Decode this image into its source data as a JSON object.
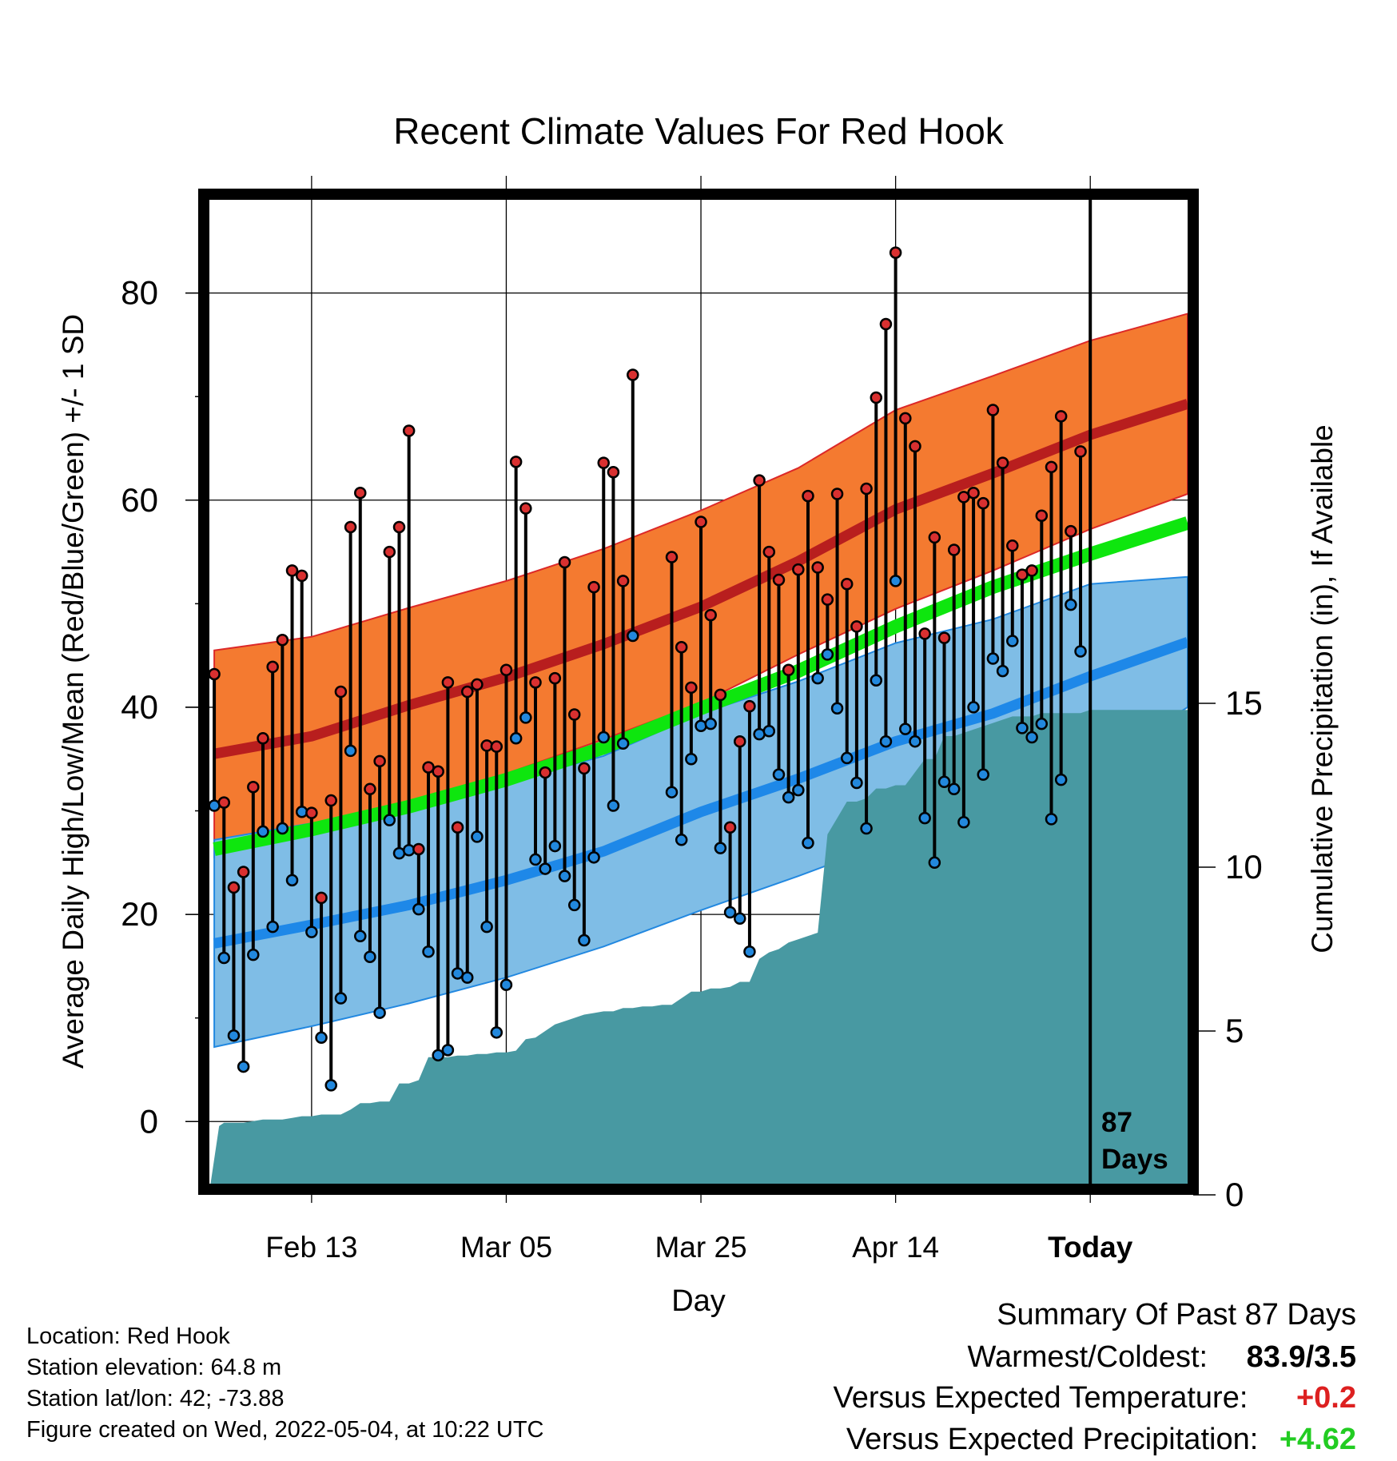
{
  "chart_data": {
    "type": "line",
    "title": "Recent Climate Values For Red Hook",
    "xlabel": "Day",
    "ylabel": "Average Daily High/Low/Mean (Red/Blue/Green) +/- 1 SD",
    "y2label": "Cumulative Precipitation (in), If Available",
    "ylim": [
      -6,
      89
    ],
    "y_ticks": [
      "0",
      "20",
      "40",
      "60",
      "80"
    ],
    "y2lim": [
      0,
      30
    ],
    "y2_ticks": [
      "0",
      "5",
      "10",
      "15"
    ],
    "x_ticks": [
      "Feb 13",
      "Mar 05",
      "Mar 25",
      "Apr 14",
      "Today"
    ],
    "x_tick_days": [
      10,
      30,
      50,
      70,
      90
    ],
    "xlim": [
      -0.5,
      100
    ],
    "today_label": "87",
    "today_label2": "Days",
    "grid": true,
    "colors": {
      "high_band": "#f47a30",
      "high_mean": "#b81e1e",
      "low_band": "#7fbde6",
      "low_mean": "#1e88e8",
      "mean": "#0ee60e",
      "precip": "#4899a2",
      "high_dot": "#d93030",
      "low_dot": "#2288dd",
      "band_edge_red": "#dc2828",
      "band_edge_blue": "#2288e0"
    },
    "normals": {
      "x": [
        0,
        10,
        20,
        30,
        40,
        50,
        60,
        70,
        80,
        90,
        100
      ],
      "high_mean": [
        35.5,
        37.2,
        40.2,
        42.9,
        46.1,
        49.7,
        54.1,
        59.1,
        62.6,
        66.3,
        69.3
      ],
      "high_sd": [
        10,
        9.6,
        9.4,
        9.3,
        9.2,
        9.3,
        9.0,
        9.6,
        9.4,
        9.1,
        8.7
      ],
      "low_mean": [
        17.2,
        19.0,
        20.9,
        23.3,
        26.1,
        29.9,
        33.1,
        36.7,
        39.4,
        43.0,
        46.3
      ],
      "low_sd": [
        10,
        9.8,
        9.5,
        9.4,
        9.2,
        9.5,
        9.4,
        9.5,
        9.1,
        8.9,
        6.3
      ],
      "mean": [
        26.3,
        28.2,
        30.4,
        33.0,
        36.1,
        39.9,
        43.5,
        47.8,
        51.6,
        54.8,
        57.8
      ]
    },
    "series": [
      {
        "name": "Daily High",
        "x": [
          0,
          1,
          2,
          3,
          4,
          5,
          6,
          7,
          8,
          9,
          10,
          11,
          12,
          13,
          14,
          15,
          16,
          17,
          18,
          19,
          20,
          21,
          22,
          23,
          24,
          25,
          26,
          27,
          28,
          29,
          30,
          31,
          32,
          33,
          34,
          35,
          36,
          37,
          38,
          39,
          40,
          41,
          42,
          43,
          47,
          48,
          49,
          50,
          51,
          52,
          53,
          54,
          55,
          56,
          57,
          58,
          59,
          60,
          61,
          62,
          63,
          64,
          65,
          66,
          67,
          68,
          69,
          70,
          71,
          72,
          73,
          74,
          75,
          76,
          77,
          78,
          79,
          80,
          81,
          82,
          83,
          84,
          85,
          86,
          87,
          88,
          89
        ],
        "values": [
          43.2,
          30.8,
          22.6,
          24.1,
          32.3,
          37.0,
          43.9,
          46.5,
          53.2,
          52.7,
          29.8,
          21.6,
          31.0,
          41.5,
          57.4,
          60.7,
          32.1,
          34.8,
          55.0,
          57.4,
          66.7,
          26.3,
          34.2,
          33.8,
          42.4,
          28.4,
          41.5,
          42.2,
          36.3,
          36.2,
          43.6,
          63.7,
          59.2,
          42.4,
          33.7,
          42.8,
          54.0,
          39.3,
          34.1,
          51.6,
          63.6,
          62.7,
          52.2,
          72.1,
          54.5,
          45.8,
          41.9,
          57.9,
          48.9,
          41.2,
          28.4,
          36.7,
          40.1,
          61.9,
          55.0,
          52.3,
          43.6,
          53.3,
          60.4,
          53.5,
          50.4,
          60.6,
          51.9,
          47.8,
          61.1,
          69.9,
          77.0,
          83.9,
          67.9,
          65.2,
          47.1,
          56.4,
          46.7,
          55.2,
          60.3,
          60.7,
          59.7,
          68.7,
          63.6,
          55.6,
          52.8,
          53.2,
          58.5,
          63.2,
          68.1,
          57.0,
          64.7
        ]
      },
      {
        "name": "Daily Low",
        "x": [
          0,
          1,
          2,
          3,
          4,
          5,
          6,
          7,
          8,
          9,
          10,
          11,
          12,
          13,
          14,
          15,
          16,
          17,
          18,
          19,
          20,
          21,
          22,
          23,
          24,
          25,
          26,
          27,
          28,
          29,
          30,
          31,
          32,
          33,
          34,
          35,
          36,
          37,
          38,
          39,
          40,
          41,
          42,
          43,
          47,
          48,
          49,
          50,
          51,
          52,
          53,
          54,
          55,
          56,
          57,
          58,
          59,
          60,
          61,
          62,
          63,
          64,
          65,
          66,
          67,
          68,
          69,
          70,
          71,
          72,
          73,
          74,
          75,
          76,
          77,
          78,
          79,
          80,
          81,
          82,
          83,
          84,
          85,
          86,
          87,
          88,
          89
        ],
        "values": [
          30.5,
          15.8,
          8.3,
          5.3,
          16.1,
          28.0,
          18.8,
          28.3,
          23.3,
          29.9,
          18.3,
          8.1,
          3.5,
          11.9,
          35.8,
          17.9,
          15.9,
          10.5,
          29.1,
          25.9,
          26.2,
          20.5,
          16.4,
          6.4,
          6.9,
          14.3,
          13.9,
          27.5,
          18.8,
          8.6,
          13.2,
          37.0,
          39.0,
          25.3,
          24.4,
          26.6,
          23.7,
          20.9,
          17.5,
          25.5,
          37.1,
          30.5,
          36.5,
          46.9,
          31.8,
          27.2,
          35.0,
          38.2,
          38.4,
          26.4,
          20.2,
          19.6,
          16.4,
          37.4,
          37.7,
          33.5,
          31.3,
          32.0,
          26.9,
          42.8,
          45.1,
          39.9,
          35.1,
          32.7,
          28.3,
          42.6,
          36.7,
          52.2,
          37.9,
          36.7,
          29.3,
          25.0,
          32.8,
          32.1,
          28.9,
          40.0,
          33.5,
          44.7,
          43.5,
          46.4,
          38.0,
          37.1,
          38.4,
          29.2,
          33.0,
          49.9,
          45.4
        ]
      }
    ],
    "precip": {
      "x": [
        -0.5,
        0.5,
        1,
        2,
        3,
        4,
        5,
        6,
        7,
        8,
        9,
        10,
        11,
        12,
        13,
        14,
        15,
        16,
        17,
        18,
        19,
        20,
        21,
        22,
        23,
        24,
        25,
        26,
        27,
        28,
        29,
        30,
        31,
        32,
        33,
        34,
        35,
        36,
        37,
        38,
        39,
        40,
        41,
        42,
        43,
        44,
        45,
        46,
        47,
        48,
        49,
        50,
        51,
        52,
        53,
        54,
        55,
        56,
        57,
        58,
        59,
        60,
        61,
        62,
        63,
        64,
        65,
        66,
        67,
        68,
        69,
        70,
        71,
        72,
        73,
        74,
        75,
        76,
        77,
        78,
        79,
        80,
        81,
        82,
        83,
        84,
        85,
        86,
        87,
        88,
        89,
        90,
        91,
        92,
        93,
        94,
        95,
        96,
        97,
        98,
        99,
        100
      ],
      "values": [
        0.1,
        2.1,
        2.2,
        2.2,
        2.2,
        2.25,
        2.3,
        2.3,
        2.3,
        2.35,
        2.4,
        2.4,
        2.45,
        2.45,
        2.45,
        2.6,
        2.8,
        2.8,
        2.85,
        2.85,
        3.4,
        3.4,
        3.5,
        4.2,
        4.2,
        4.2,
        4.25,
        4.25,
        4.3,
        4.3,
        4.35,
        4.35,
        4.4,
        4.75,
        4.8,
        5.0,
        5.2,
        5.3,
        5.4,
        5.5,
        5.55,
        5.6,
        5.6,
        5.7,
        5.7,
        5.75,
        5.75,
        5.8,
        5.8,
        6.0,
        6.2,
        6.2,
        6.3,
        6.3,
        6.35,
        6.5,
        6.5,
        7.2,
        7.4,
        7.5,
        7.7,
        7.8,
        7.9,
        8.0,
        11.0,
        11.5,
        12.0,
        12.0,
        12.1,
        12.4,
        12.4,
        12.5,
        12.5,
        12.9,
        13.3,
        13.3,
        14.0,
        14.0,
        14.1,
        14.2,
        14.3,
        14.4,
        14.5,
        14.6,
        14.6,
        14.6,
        14.7,
        14.7,
        14.7,
        14.7,
        14.7,
        14.8,
        14.8,
        14.8,
        14.8,
        14.8,
        14.8,
        14.8,
        14.8,
        14.8,
        14.8,
        14.8
      ]
    }
  },
  "info": {
    "location": "Location: Red Hook",
    "elevation": "Station elevation: 64.8 m",
    "latlon": "Station lat/lon: 42; -73.88",
    "created": "Figure created on Wed, 2022-05-04, at 10:22 UTC"
  },
  "summary": {
    "heading": "Summary Of Past 87 Days",
    "warmest_label": "Warmest/Coldest:",
    "warmest_value": "83.9/3.5",
    "temp_label": "Versus Expected Temperature:",
    "temp_value": "+0.2",
    "temp_color": "#dd2020",
    "precip_label": "Versus Expected Precipitation:",
    "precip_value": "+4.62",
    "precip_color": "#22cc22"
  }
}
